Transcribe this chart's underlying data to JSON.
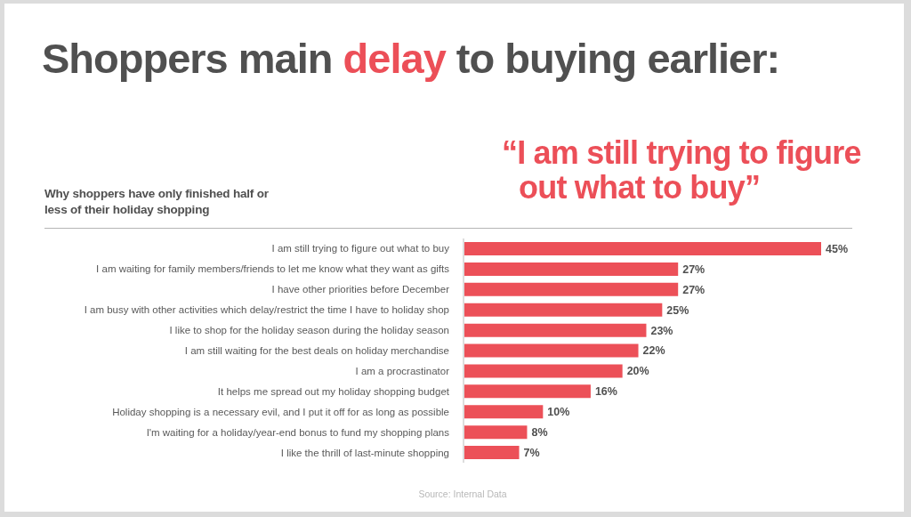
{
  "chart_data": {
    "type": "bar",
    "orientation": "horizontal",
    "title": "Shoppers main delay to buying earlier:",
    "subtitle": "Why shoppers have only finished half or less of their holiday shopping",
    "annotations": [
      "“I am still trying to figure out what to buy”",
      "Source: Internal Data"
    ],
    "categories": [
      "I am still trying to figure out what to buy",
      "I am waiting for family members/friends to let me know what they want as gifts",
      "I have other priorities before December",
      "I am busy with other activities which delay/restrict the time I have to holiday shop",
      "I like to shop for the holiday season during the holiday season",
      "I am still waiting for the best deals on holiday merchandise",
      "I am a procrastinator",
      "It helps me spread out my holiday shopping budget",
      "Holiday shopping is a necessary evil, and I put it off for as long as possible",
      "I'm waiting for a holiday/year-end bonus to fund my shopping plans",
      "I like the thrill of last-minute shopping"
    ],
    "values": [
      45,
      27,
      27,
      25,
      23,
      22,
      20,
      16,
      10,
      8,
      7
    ],
    "color": "#ec5058",
    "value_labels": [
      "45%",
      "27%",
      "27%",
      "25%",
      "23%",
      "22%",
      "20%",
      "16%",
      "10%",
      "8%",
      "7%"
    ],
    "tick_labels": "y"
  }
}
